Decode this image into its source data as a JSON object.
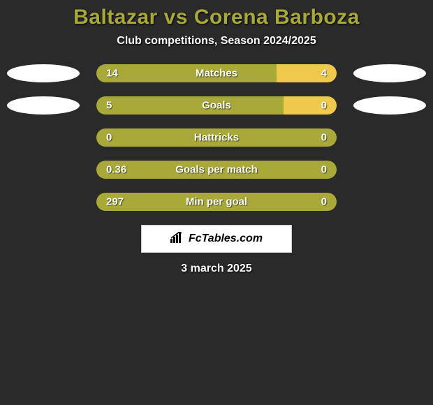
{
  "title": "Baltazar vs Corena Barboza",
  "subtitle": "Club competitions, Season 2024/2025",
  "colors": {
    "background": "#2a2a2a",
    "title": "#a9a93a",
    "text": "#ffffff",
    "left_bar": "#a9a93a",
    "right_bar": "#efc94c",
    "ellipse": "#ffffff"
  },
  "bars": [
    {
      "label": "Matches",
      "left_val": "14",
      "right_val": "4",
      "left_pct": 75,
      "right_pct": 25,
      "show_ellipses": true
    },
    {
      "label": "Goals",
      "left_val": "5",
      "right_val": "0",
      "left_pct": 78,
      "right_pct": 22,
      "show_ellipses": true
    },
    {
      "label": "Hattricks",
      "left_val": "0",
      "right_val": "0",
      "left_pct": 100,
      "right_pct": 0,
      "show_ellipses": false
    },
    {
      "label": "Goals per match",
      "left_val": "0.36",
      "right_val": "0",
      "left_pct": 100,
      "right_pct": 0,
      "show_ellipses": false
    },
    {
      "label": "Min per goal",
      "left_val": "297",
      "right_val": "0",
      "left_pct": 100,
      "right_pct": 0,
      "show_ellipses": false
    }
  ],
  "brand": "FcTables.com",
  "date": "3 march 2025"
}
